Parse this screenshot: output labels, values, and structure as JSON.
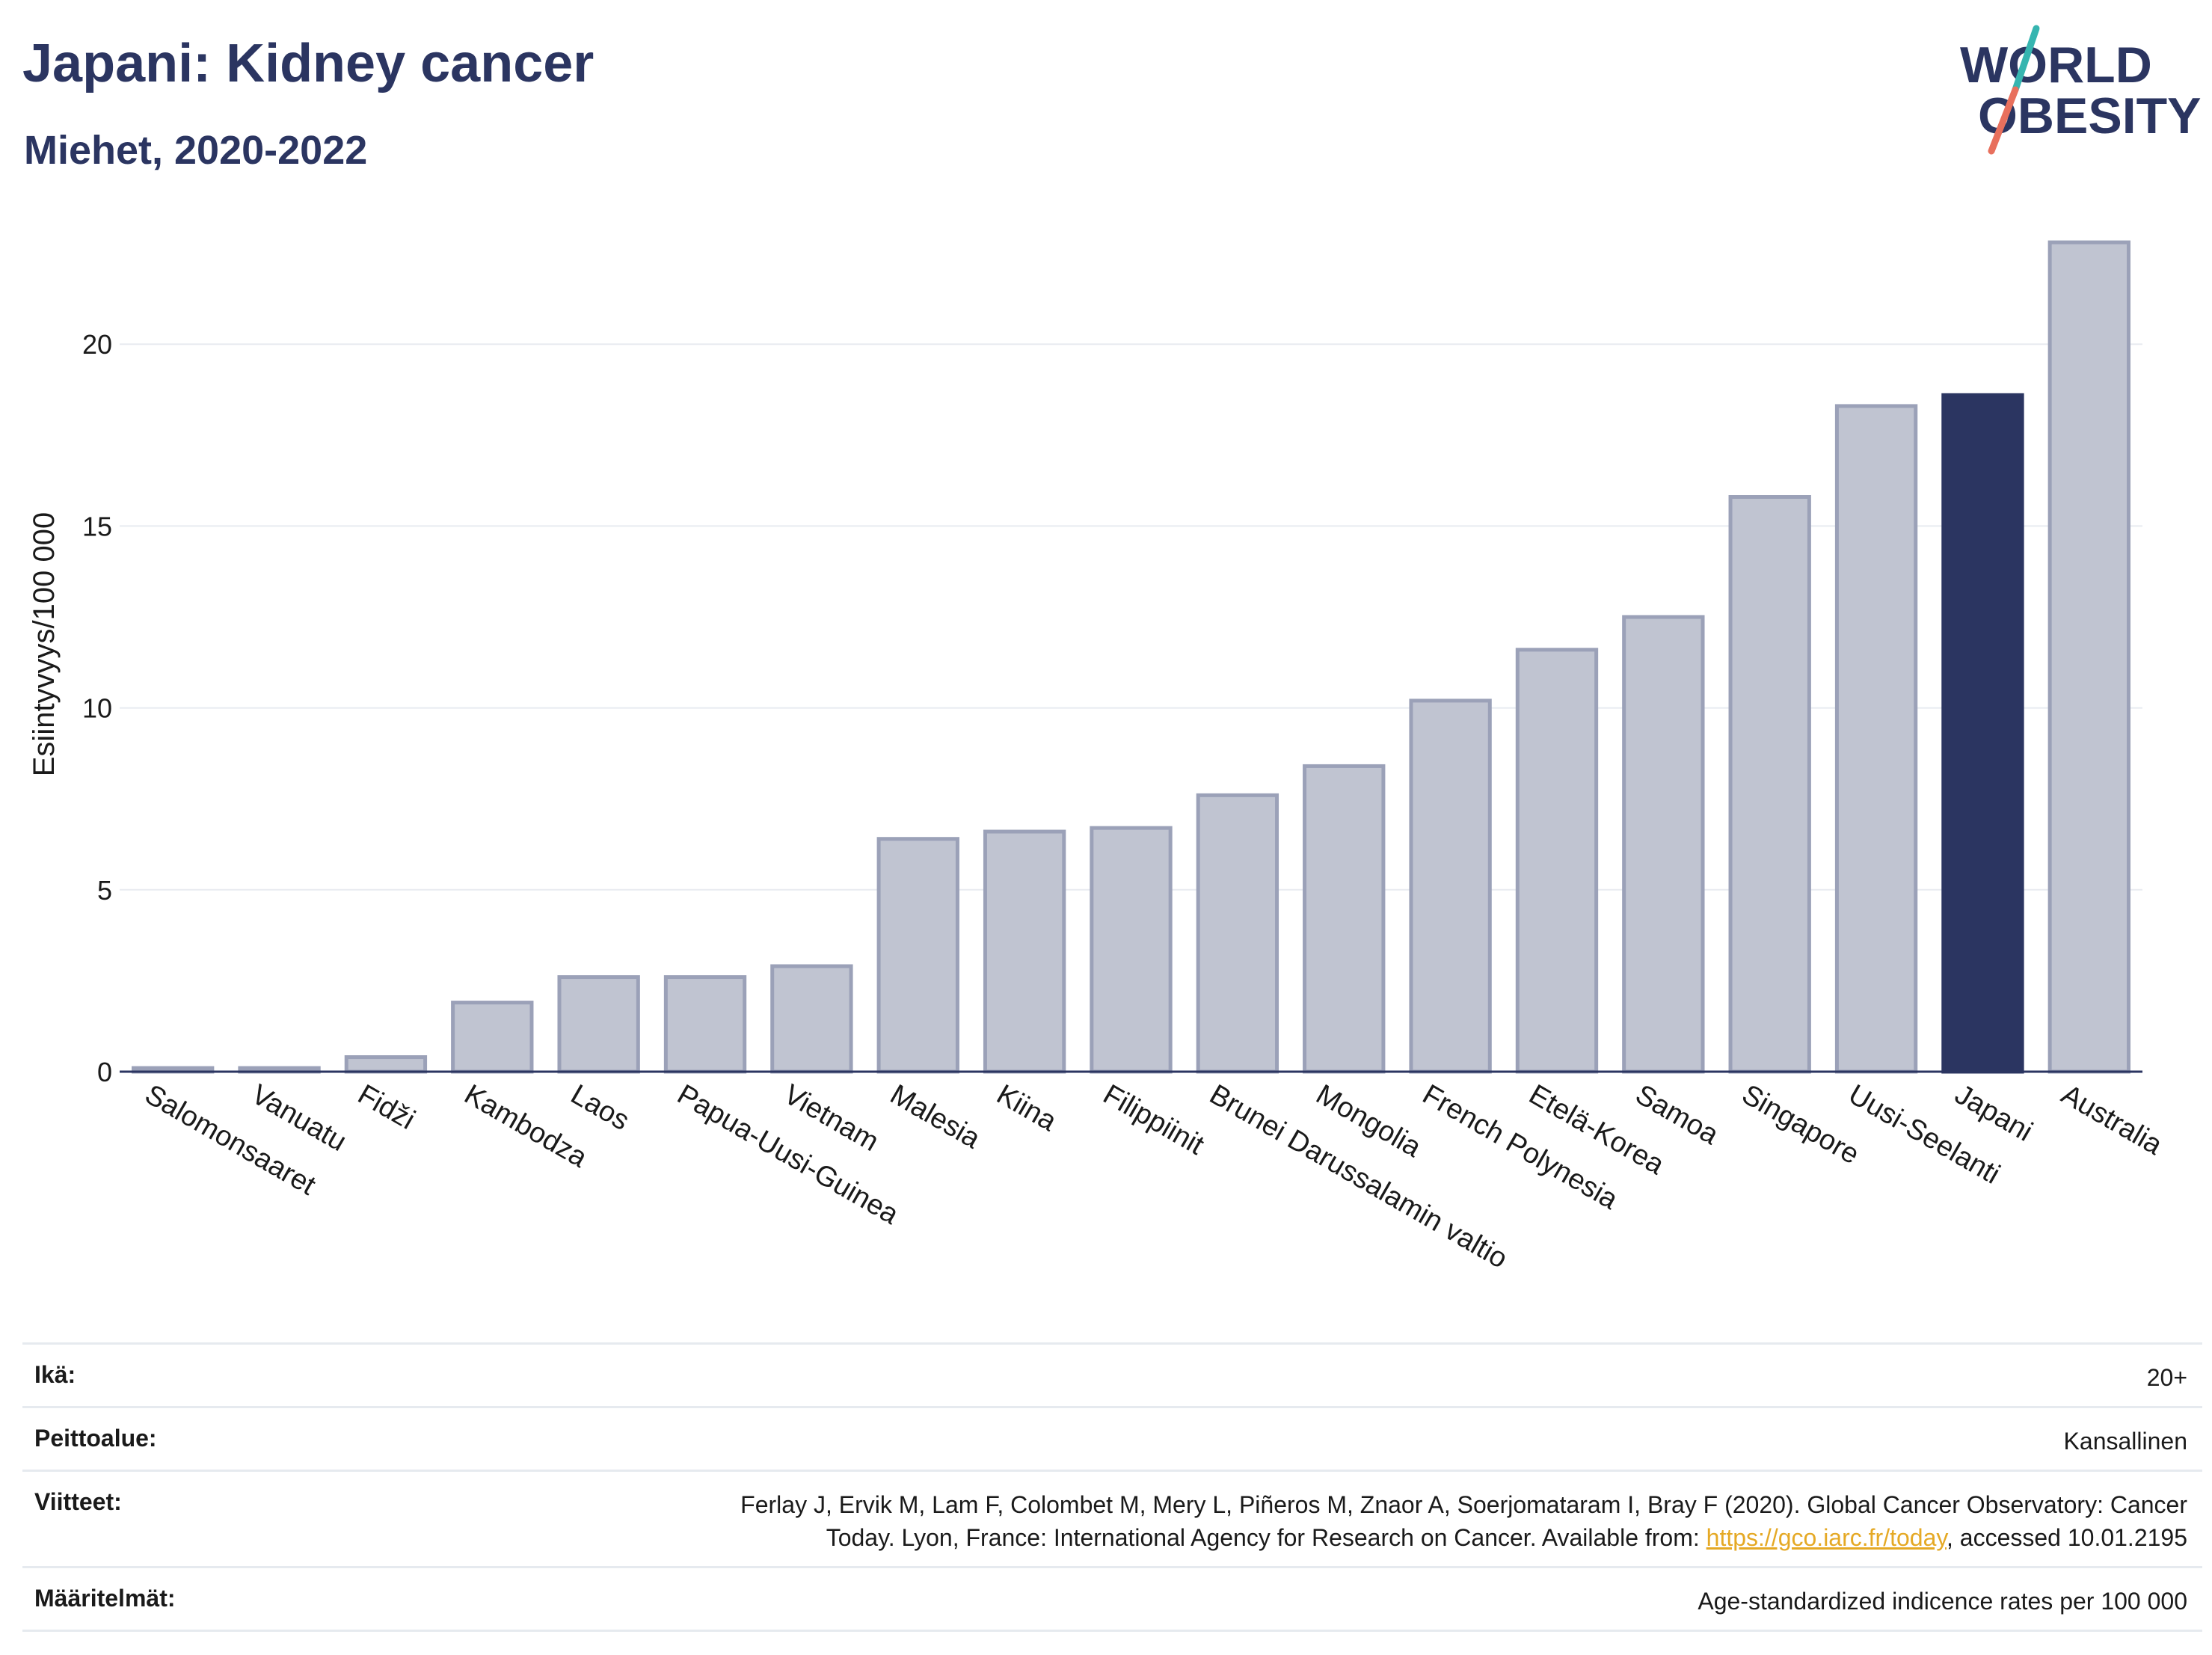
{
  "header": {
    "title": "Japani: Kidney cancer",
    "subtitle": "Miehet, 2020-2022"
  },
  "logo": {
    "line1": "WORLD",
    "line2": "OBESITY",
    "colors": {
      "text": "#2b3561",
      "slash_top": "#36b5b0",
      "slash_bottom": "#e8705d"
    }
  },
  "chart_data": {
    "type": "bar",
    "ylabel": "Esiintyvyys/100 000",
    "ylim": [
      0,
      23.5
    ],
    "yticks": [
      0,
      5,
      10,
      15,
      20
    ],
    "grid": true,
    "categories": [
      "Salomonsaaret",
      "Vanuatu",
      "Fidži",
      "Kambodza",
      "Laos",
      "Papua-Uusi-Guinea",
      "Vietnam",
      "Malesia",
      "Kiina",
      "Filippiinit",
      "Brunei Darussalamin valtio",
      "Mongolia",
      "French Polynesia",
      "Etelä-Korea",
      "Samoa",
      "Singapore",
      "Uusi-Seelanti",
      "Japani",
      "Australia"
    ],
    "values": [
      0.1,
      0.1,
      0.4,
      1.9,
      2.6,
      2.6,
      2.9,
      6.4,
      6.6,
      6.7,
      7.6,
      8.4,
      10.2,
      11.6,
      12.5,
      15.8,
      18.3,
      18.6,
      22.8
    ],
    "highlight": "Japani",
    "colors": {
      "bar": "#c0c4d1",
      "bar_edge": "#9ba1b8",
      "highlight": "#2b3561",
      "grid": "#e8ebf0",
      "axis": "#2b3561"
    }
  },
  "info": {
    "age_label": "Ikä:",
    "age_value": "20+",
    "coverage_label": "Peittoalue:",
    "coverage_value": "Kansallinen",
    "refs_label": "Viitteet:",
    "refs_text_1": "Ferlay J, Ervik M, Lam F, Colombet M, Mery L, Piñeros M, Znaor A, Soerjomataram I, Bray F (2020). Global Cancer Observatory: Cancer",
    "refs_text_2": "Today. Lyon, France: International Agency for Research on Cancer. Available from: ",
    "refs_link": "https://gco.iarc.fr/today",
    "refs_text_3": ", accessed 10.01.2195",
    "defs_label": "Määritelmät:",
    "defs_value": "Age-standardized indicence rates per 100 000"
  }
}
